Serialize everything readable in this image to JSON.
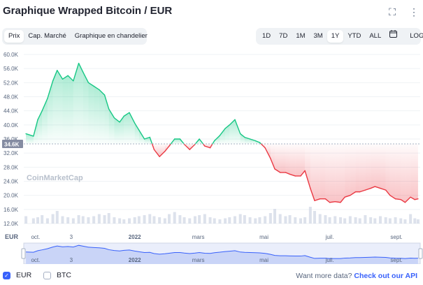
{
  "header": {
    "title": "Graphique Wrapped Bitcoin / EUR",
    "fullscreen_icon": "expand-icon",
    "more_icon": "more-vertical-icon"
  },
  "type_tabs": [
    {
      "label": "Prix",
      "active": true
    },
    {
      "label": "Cap. Marché",
      "active": false
    },
    {
      "label": "Graphique en chandelier",
      "active": false
    }
  ],
  "range_tabs": [
    {
      "label": "1D",
      "active": false
    },
    {
      "label": "7D",
      "active": false
    },
    {
      "label": "1M",
      "active": false
    },
    {
      "label": "3M",
      "active": false
    },
    {
      "label": "1Y",
      "active": true
    },
    {
      "label": "YTD",
      "active": false
    },
    {
      "label": "ALL",
      "active": false
    }
  ],
  "calendar_icon": "calendar-icon",
  "log_label": "LOG",
  "watermark": "CoinMarketCap",
  "chart_data": {
    "type": "area",
    "currency_label": "EUR",
    "y_ticks": [
      "60.0K",
      "56.0K",
      "52.0K",
      "48.0K",
      "44.0K",
      "40.0K",
      "36.0K",
      "32.0K",
      "28.0K",
      "24.0K",
      "20.0K",
      "16.0K",
      "12.0K"
    ],
    "x_ticks": [
      "oct.",
      "3",
      "2022",
      "mars",
      "mai",
      "juil.",
      "sept."
    ],
    "reference_price": "34.6K",
    "ylim": [
      12000,
      60000
    ],
    "colors": {
      "up": "#16c784",
      "down": "#ea3943",
      "navigator": "#3861fb"
    },
    "x": [
      "2021-09-22",
      "2021-09-29",
      "2021-10-03",
      "2021-10-07",
      "2021-10-12",
      "2021-10-17",
      "2021-10-21",
      "2021-10-26",
      "2021-10-31",
      "2021-11-05",
      "2021-11-10",
      "2021-11-14",
      "2021-11-19",
      "2021-11-24",
      "2021-11-29",
      "2021-12-04",
      "2021-12-08",
      "2021-12-13",
      "2021-12-18",
      "2021-12-22",
      "2021-12-27",
      "2022-01-01",
      "2022-01-05",
      "2022-01-10",
      "2022-01-15",
      "2022-01-19",
      "2022-01-24",
      "2022-01-29",
      "2022-02-02",
      "2022-02-07",
      "2022-02-12",
      "2022-02-16",
      "2022-02-21",
      "2022-02-26",
      "2022-03-02",
      "2022-03-07",
      "2022-03-12",
      "2022-03-16",
      "2022-03-21",
      "2022-03-26",
      "2022-03-30",
      "2022-04-04",
      "2022-04-09",
      "2022-04-13",
      "2022-04-18",
      "2022-04-23",
      "2022-04-27",
      "2022-05-02",
      "2022-05-07",
      "2022-05-11",
      "2022-05-16",
      "2022-05-21",
      "2022-05-25",
      "2022-05-30",
      "2022-06-04",
      "2022-06-08",
      "2022-06-13",
      "2022-06-17",
      "2022-06-22",
      "2022-06-27",
      "2022-07-01",
      "2022-07-06",
      "2022-07-11",
      "2022-07-15",
      "2022-07-20",
      "2022-07-25",
      "2022-07-29",
      "2022-08-03",
      "2022-08-08",
      "2022-08-12",
      "2022-08-17",
      "2022-08-22",
      "2022-08-26",
      "2022-08-31",
      "2022-09-05",
      "2022-09-09",
      "2022-09-14",
      "2022-09-18",
      "2022-09-21"
    ],
    "values": [
      37500,
      36800,
      41500,
      44000,
      47500,
      52500,
      55500,
      53000,
      54000,
      52500,
      57500,
      55000,
      52000,
      51000,
      50000,
      48500,
      44500,
      42000,
      40800,
      42500,
      43500,
      40500,
      38500,
      36000,
      36500,
      33000,
      31000,
      32500,
      34000,
      36000,
      36000,
      34500,
      33000,
      34500,
      36000,
      34000,
      33500,
      35500,
      37000,
      39000,
      40000,
      41500,
      37500,
      36500,
      36000,
      35500,
      35000,
      33500,
      30500,
      27500,
      26500,
      26500,
      26000,
      25500,
      25500,
      27000,
      22000,
      18500,
      19000,
      19000,
      18000,
      18200,
      18000,
      19500,
      20000,
      21000,
      21000,
      21500,
      22000,
      22500,
      22000,
      21500,
      20000,
      19000,
      18800,
      18000,
      19500,
      18800,
      19000
    ],
    "volume": [
      7,
      5,
      6,
      8,
      5,
      9,
      12,
      7,
      6,
      5,
      8,
      7,
      6,
      7,
      9,
      8,
      10,
      6,
      5,
      4,
      5,
      6,
      7,
      8,
      9,
      7,
      6,
      5,
      9,
      11,
      8,
      6,
      5,
      7,
      8,
      9,
      6,
      5,
      4,
      5,
      6,
      7,
      9,
      8,
      6,
      5,
      6,
      7,
      10,
      14,
      9,
      7,
      8,
      6,
      5,
      6,
      16,
      12,
      9,
      8,
      6,
      7,
      6,
      5,
      7,
      6,
      5,
      8,
      6,
      5,
      7,
      6,
      5,
      6,
      5,
      4,
      9,
      5,
      4
    ]
  },
  "legend": [
    {
      "label": "EUR",
      "checked": true
    },
    {
      "label": "BTC",
      "checked": false
    }
  ],
  "api_cta": {
    "text": "Want more data?",
    "link": "Check out our API"
  }
}
